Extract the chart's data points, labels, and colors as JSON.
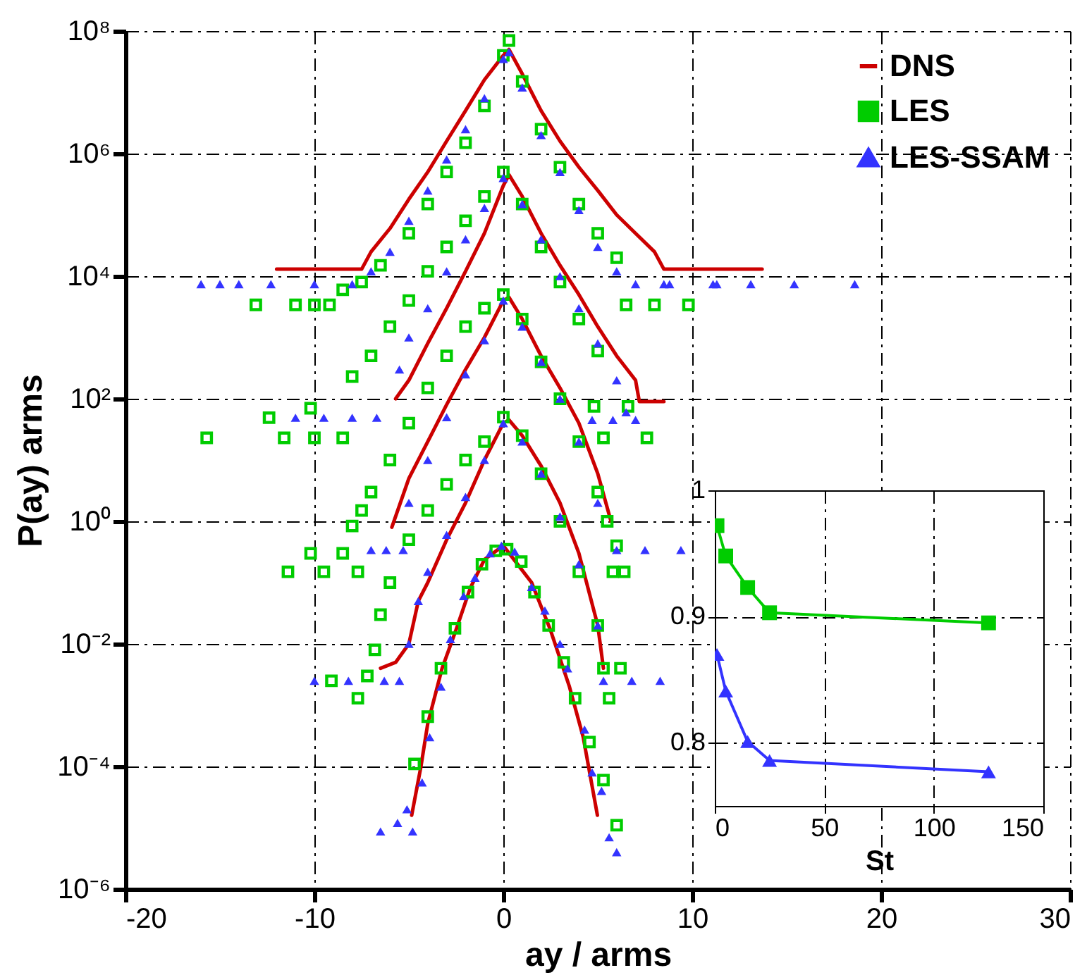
{
  "chart_data": [
    {
      "type": "line",
      "xlabel": "ay / arms",
      "ylabel": "P(ay) arms",
      "log": "y",
      "grid": true,
      "legend": "top right",
      "xlim": [
        -20,
        30
      ],
      "xticks": [
        -20,
        -10,
        0,
        10,
        20,
        30
      ],
      "ylim": [
        1e-06,
        100000000.0
      ],
      "yticks": [
        {
          "value": 1e-06,
          "label": "10⁻⁶"
        },
        {
          "value": 0.0001,
          "label": "10⁻⁴"
        },
        {
          "value": 0.01,
          "label": "10⁻²"
        },
        {
          "value": 1,
          "label": "10⁰"
        },
        {
          "value": 100,
          "label": "10²"
        },
        {
          "value": 10000.0,
          "label": "10⁴"
        },
        {
          "value": 1000000.0,
          "label": "10⁶"
        },
        {
          "value": 100000000.0,
          "label": "10⁸"
        }
      ],
      "series": [
        {
          "name": "DNS",
          "color": "#cc0000",
          "x": [
            -12,
            -7.5,
            -7,
            -6,
            -5,
            -4,
            -3,
            -2,
            -1,
            0,
            0.3,
            1,
            2,
            3,
            4,
            5,
            6,
            7,
            8,
            8.5,
            13.7
          ],
          "values": [
            13000.0,
            13000.0,
            25000.0,
            60000.0,
            180000.0,
            500000.0,
            1600000.0,
            5000000.0,
            16000000.0,
            40000000.0,
            50000000.0,
            20000000.0,
            5000000.0,
            1600000.0,
            600000.0,
            250000.0,
            100000.0,
            50000.0,
            25000.0,
            13000.0,
            13000.0
          ]
        },
        {
          "color": "#cc0000",
          "x": [
            -5.7,
            -5,
            -4,
            -3,
            -2,
            -1,
            0,
            0.3,
            1,
            2,
            3,
            4,
            5,
            6,
            7,
            7.2,
            8.5
          ],
          "values": [
            100,
            200,
            800,
            3000,
            12000.0,
            50000.0,
            300000.0,
            450000.0,
            200000.0,
            50000.0,
            15000.0,
            5000.0,
            1500.0,
            500,
            200,
            90,
            90
          ]
        },
        {
          "color": "#cc0000",
          "x": [
            -5.9,
            -5,
            -4,
            -3,
            -2,
            -1,
            0,
            0.3,
            1,
            2,
            3,
            4,
            5,
            5.7
          ],
          "values": [
            0.8,
            5,
            20,
            80,
            300,
            1000,
            4000,
            4500,
            2000,
            500,
            150,
            40,
            6,
            1
          ]
        },
        {
          "color": "#cc0000",
          "x": [
            -6.5,
            -5.7,
            -5,
            -4.5,
            -4,
            -3,
            -2,
            -1,
            0,
            0.3,
            1,
            2,
            3,
            4,
            5,
            5.3
          ],
          "values": [
            0.004,
            0.005,
            0.01,
            0.05,
            0.1,
            0.5,
            2,
            10,
            40,
            45,
            25,
            8,
            2,
            0.3,
            0.02,
            0.004
          ]
        },
        {
          "color": "#cc0000",
          "x": [
            -4.85,
            -4.36,
            -4,
            -3.24,
            -2.5,
            -1.74,
            -0.99,
            0,
            1.5,
            2.49,
            3.5,
            4.23,
            4.98
          ],
          "values": [
            1.6e-05,
            0.0001,
            0.0005,
            0.004,
            0.017,
            0.083,
            0.24,
            0.4,
            0.1,
            0.017,
            0.002,
            0.0003,
            1.6e-05
          ]
        },
        {
          "name": "LES",
          "type": "scatter",
          "marker": "square",
          "color": "#00cc00",
          "x": [
            -13.1,
            -11,
            -10,
            -9.2,
            -8.5,
            -7.5,
            -6.5,
            -5,
            -4,
            -3,
            -2,
            -1,
            0,
            0.3,
            1,
            2,
            3,
            4,
            5,
            6,
            6.5,
            8,
            9.8,
            -15.7,
            -12.4,
            -11.6,
            -10.2,
            -10,
            -8.5,
            -8,
            -7,
            -6,
            -5,
            -4,
            -3,
            -2,
            -1,
            0,
            1,
            2,
            3,
            4,
            5,
            4.8,
            6.6,
            5.3,
            7.6,
            -11.4,
            -10.2,
            -9.5,
            -8.5,
            -7.7,
            -8,
            -7.5,
            -7,
            -6,
            -5,
            -4,
            -3,
            -2,
            -1,
            0,
            1,
            2,
            3,
            4,
            5,
            5.5,
            6,
            5.8,
            6.4,
            -9.1,
            -7.7,
            -7.2,
            -6.8,
            -6.5,
            -6,
            -5,
            -4,
            -3,
            -2,
            -1,
            0,
            1,
            2,
            3,
            4,
            5,
            5.3,
            6.2,
            5.6,
            -4.7,
            -4,
            -3.3,
            -2.56,
            -1.87,
            -1.13,
            -0.4,
            0.2,
            0.95,
            1.65,
            2.4,
            3.2,
            3.8,
            4.56,
            5.3,
            6
          ],
          "values": [
            3400,
            3400,
            3400,
            3400,
            6000,
            8000,
            15000.0,
            50000.0,
            150000.0,
            500000.0,
            1500000.0,
            6000000.0,
            40000000.0,
            70000000.0,
            15000000.0,
            2500000.0,
            600000.0,
            150000.0,
            50000.0,
            20000.0,
            3400,
            3400,
            3400,
            23,
            49,
            23,
            70,
            23,
            23,
            230,
            500,
            1500,
            4000,
            12000.0,
            30000.0,
            80000.0,
            200000.0,
            500000.0,
            150000.0,
            30000.0,
            8000.0,
            2000.0,
            600,
            75,
            75,
            23,
            23,
            0.15,
            0.3,
            0.15,
            0.3,
            0.15,
            0.84,
            1.5,
            3,
            10,
            40,
            150,
            500,
            1500,
            3000,
            5000,
            2000,
            400,
            100,
            20,
            3,
            1,
            0.4,
            0.15,
            0.15,
            0.0025,
            0.0013,
            0.003,
            0.008,
            0.03,
            0.1,
            0.5,
            1.5,
            4,
            10,
            20,
            50,
            25,
            6,
            1,
            0.15,
            0.02,
            0.004,
            0.004,
            0.0013,
            0.00011,
            0.00065,
            0.004,
            0.018,
            0.07,
            0.2,
            0.33,
            0.35,
            0.22,
            0.07,
            0.02,
            0.005,
            0.0013,
            0.00025,
            6e-05,
            1.1e-05
          ]
        },
        {
          "name": "LES-SSAM",
          "type": "scatter",
          "marker": "triangle",
          "color": "#3333ff",
          "x": [
            -16,
            -15,
            -14,
            -12.3,
            -10,
            -8,
            -7,
            -6,
            -5,
            -4,
            -3,
            -2,
            -1,
            0,
            0.3,
            1,
            2,
            3,
            4,
            5,
            6,
            7,
            8.5,
            8.8,
            11.1,
            11.3,
            13.1,
            15.4,
            18.6,
            -11,
            -9.5,
            -8,
            -6.7,
            -5.5,
            -5,
            -4,
            -3,
            -2,
            -1,
            0,
            1,
            2,
            3,
            4,
            5,
            6,
            6.5,
            4.7,
            5.8,
            7,
            -7,
            -6.2,
            -5.3,
            -5,
            -4,
            -3,
            -2,
            -1,
            0,
            1,
            2,
            3,
            4,
            5,
            6,
            7.5,
            9.4,
            -10,
            -8.2,
            -6.3,
            -5.5,
            -5,
            -4.5,
            -4,
            -3,
            -2,
            -1,
            0,
            1,
            2,
            3,
            4,
            5,
            5.3,
            6.8,
            8.3,
            -6.5,
            -5.6,
            -5.1,
            -4.8,
            -4.3,
            -3.9,
            -3.3,
            -2.8,
            -2.1,
            -1.5,
            -0.7,
            -0.1,
            0.6,
            1.5,
            2.2,
            3,
            3.4,
            4.3,
            4.7,
            5.2,
            5.6,
            6
          ],
          "values": [
            7400,
            7400,
            7400,
            7400,
            7400,
            7400,
            12000.0,
            25000.0,
            80000.0,
            250000.0,
            800000.0,
            2500000.0,
            8000000.0,
            35000000.0,
            45000000.0,
            12000000.0,
            2000000.0,
            500000.0,
            120000.0,
            30000.0,
            12000.0,
            7400,
            7400,
            7400,
            7400,
            7400,
            7400,
            7400,
            7400,
            49,
            49,
            49,
            49,
            300,
            1000,
            3000,
            12000.0,
            40000.0,
            130000.0,
            400000.0,
            150000.0,
            40000.0,
            10000.0,
            3000,
            800,
            200,
            60,
            45,
            45,
            45,
            0.34,
            0.34,
            0.34,
            2,
            10,
            50,
            250,
            900,
            4000,
            1500,
            400,
            100,
            20,
            2,
            0.34,
            0.34,
            0.34,
            0.0025,
            0.0025,
            0.0025,
            0.0025,
            0.01,
            0.05,
            0.15,
            0.6,
            2.5,
            10,
            40,
            20,
            6,
            1.2,
            0.2,
            0.02,
            0.0025,
            0.0025,
            0.0025,
            8.7e-06,
            1.2e-05,
            2e-05,
            8.7e-06,
            5.5e-05,
            0.0003,
            0.002,
            0.012,
            0.06,
            0.12,
            0.3,
            0.4,
            0.32,
            0.085,
            0.035,
            0.01,
            0.004,
            0.0004,
            8e-05,
            4e-05,
            7e-06,
            4e-06
          ]
        }
      ]
    },
    {
      "type": "line",
      "xlabel": "St",
      "grid": true,
      "xlim": [
        0,
        150
      ],
      "xticks": [
        0,
        50,
        100,
        150
      ],
      "ylim": [
        0.75,
        1
      ],
      "yticks": [
        0.8,
        0.9,
        1
      ],
      "x": [
        1,
        5,
        15,
        25,
        125
      ],
      "series": [
        {
          "color": "#00cc00",
          "marker": "square",
          "values": [
            0.972,
            0.948,
            0.923,
            0.903,
            0.895
          ]
        },
        {
          "color": "#3333ff",
          "marker": "triangle",
          "values": [
            0.87,
            0.841,
            0.801,
            0.786,
            0.777
          ]
        }
      ]
    }
  ]
}
